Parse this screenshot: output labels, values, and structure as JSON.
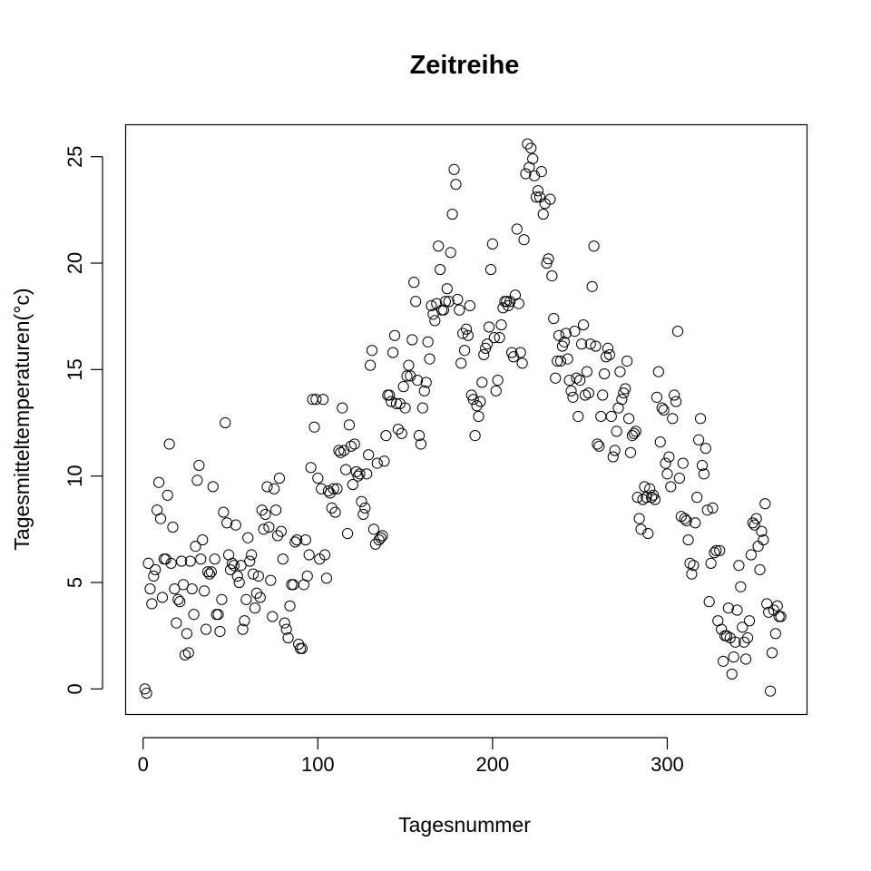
{
  "chart_data": {
    "type": "scatter",
    "title": "Zeitreihe",
    "xlabel": "Tagesnummer",
    "ylabel": "Tagesmitteltemperaturen(°c)",
    "xlim": [
      -10,
      380
    ],
    "ylim": [
      -1.2,
      26.5
    ],
    "xticks": [
      0,
      100,
      200,
      300
    ],
    "yticks": [
      0,
      5,
      10,
      15,
      20,
      25
    ],
    "grid": false,
    "marker": "open-circle",
    "point_color": "#000000",
    "points": [
      [
        1,
        0
      ],
      [
        2,
        -0.2
      ],
      [
        3,
        5.9
      ],
      [
        4,
        4.7
      ],
      [
        5,
        4.0
      ],
      [
        6,
        5.3
      ],
      [
        7,
        5.6
      ],
      [
        8,
        8.4
      ],
      [
        9,
        9.7
      ],
      [
        10,
        8.0
      ],
      [
        11,
        4.3
      ],
      [
        12,
        6.1
      ],
      [
        13,
        6.1
      ],
      [
        14,
        9.1
      ],
      [
        15,
        11.5
      ],
      [
        16,
        5.9
      ],
      [
        17,
        7.6
      ],
      [
        18,
        4.7
      ],
      [
        19,
        3.1
      ],
      [
        20,
        4.2
      ],
      [
        21,
        4.1
      ],
      [
        22,
        6.0
      ],
      [
        23,
        4.9
      ],
      [
        24,
        1.6
      ],
      [
        25,
        2.6
      ],
      [
        26,
        1.7
      ],
      [
        27,
        6.0
      ],
      [
        28,
        4.7
      ],
      [
        29,
        3.5
      ],
      [
        30,
        6.7
      ],
      [
        31,
        9.8
      ],
      [
        32,
        10.5
      ],
      [
        33,
        6.1
      ],
      [
        34,
        7.0
      ],
      [
        35,
        4.6
      ],
      [
        36,
        2.8
      ],
      [
        37,
        5.5
      ],
      [
        38,
        5.4
      ],
      [
        39,
        5.5
      ],
      [
        40,
        9.5
      ],
      [
        41,
        6.1
      ],
      [
        42,
        3.5
      ],
      [
        43,
        3.5
      ],
      [
        44,
        2.7
      ],
      [
        45,
        4.2
      ],
      [
        46,
        8.3
      ],
      [
        47,
        12.5
      ],
      [
        48,
        7.8
      ],
      [
        49,
        6.3
      ],
      [
        50,
        5.6
      ],
      [
        51,
        5.9
      ],
      [
        52,
        5.8
      ],
      [
        53,
        7.7
      ],
      [
        54,
        5.3
      ],
      [
        55,
        5.0
      ],
      [
        56,
        5.8
      ],
      [
        57,
        2.8
      ],
      [
        58,
        3.2
      ],
      [
        59,
        4.2
      ],
      [
        60,
        7.1
      ],
      [
        61,
        6.0
      ],
      [
        62,
        6.3
      ],
      [
        63,
        5.4
      ],
      [
        64,
        3.8
      ],
      [
        65,
        4.5
      ],
      [
        66,
        5.3
      ],
      [
        67,
        4.3
      ],
      [
        68,
        8.4
      ],
      [
        69,
        7.5
      ],
      [
        70,
        8.2
      ],
      [
        71,
        9.5
      ],
      [
        72,
        7.6
      ],
      [
        73,
        5.1
      ],
      [
        74,
        3.4
      ],
      [
        75,
        9.4
      ],
      [
        76,
        8.4
      ],
      [
        77,
        7.2
      ],
      [
        78,
        9.9
      ],
      [
        79,
        7.4
      ],
      [
        80,
        6.1
      ],
      [
        81,
        3.1
      ],
      [
        82,
        2.8
      ],
      [
        83,
        2.4
      ],
      [
        84,
        3.9
      ],
      [
        85,
        4.9
      ],
      [
        86,
        4.9
      ],
      [
        87,
        6.9
      ],
      [
        88,
        7.0
      ],
      [
        89,
        2.1
      ],
      [
        90,
        1.9
      ],
      [
        91,
        1.9
      ],
      [
        92,
        4.9
      ],
      [
        93,
        7.0
      ],
      [
        94,
        5.3
      ],
      [
        95,
        6.3
      ],
      [
        96,
        10.4
      ],
      [
        97,
        13.6
      ],
      [
        98,
        12.3
      ],
      [
        99,
        13.6
      ],
      [
        100,
        9.9
      ],
      [
        101,
        6.1
      ],
      [
        102,
        9.4
      ],
      [
        103,
        13.6
      ],
      [
        104,
        6.3
      ],
      [
        105,
        5.2
      ],
      [
        106,
        9.3
      ],
      [
        107,
        9.2
      ],
      [
        108,
        8.5
      ],
      [
        109,
        9.4
      ],
      [
        110,
        8.3
      ],
      [
        111,
        9.4
      ],
      [
        112,
        11.2
      ],
      [
        113,
        11.1
      ],
      [
        114,
        13.2
      ],
      [
        115,
        11.2
      ],
      [
        116,
        10.3
      ],
      [
        117,
        7.3
      ],
      [
        118,
        12.4
      ],
      [
        119,
        11.4
      ],
      [
        120,
        9.6
      ],
      [
        121,
        11.5
      ],
      [
        122,
        10.2
      ],
      [
        123,
        10.0
      ],
      [
        124,
        10.1
      ],
      [
        125,
        8.8
      ],
      [
        126,
        8.2
      ],
      [
        127,
        8.5
      ],
      [
        128,
        10.1
      ],
      [
        129,
        11.0
      ],
      [
        130,
        15.2
      ],
      [
        131,
        15.9
      ],
      [
        132,
        7.5
      ],
      [
        133,
        6.8
      ],
      [
        134,
        10.6
      ],
      [
        135,
        7.0
      ],
      [
        136,
        7.1
      ],
      [
        137,
        7.2
      ],
      [
        138,
        10.7
      ],
      [
        139,
        11.9
      ],
      [
        140,
        13.8
      ],
      [
        141,
        13.8
      ],
      [
        142,
        13.5
      ],
      [
        143,
        15.8
      ],
      [
        144,
        16.6
      ],
      [
        145,
        13.4
      ],
      [
        146,
        12.2
      ],
      [
        147,
        13.4
      ],
      [
        148,
        12.0
      ],
      [
        149,
        14.2
      ],
      [
        150,
        13.2
      ],
      [
        151,
        14.7
      ],
      [
        152,
        15.2
      ],
      [
        153,
        14.7
      ],
      [
        154,
        16.4
      ],
      [
        155,
        19.1
      ],
      [
        156,
        18.2
      ],
      [
        157,
        14.5
      ],
      [
        158,
        11.9
      ],
      [
        159,
        11.5
      ],
      [
        160,
        13.2
      ],
      [
        161,
        14.0
      ],
      [
        162,
        14.4
      ],
      [
        163,
        16.3
      ],
      [
        164,
        15.5
      ],
      [
        165,
        18.0
      ],
      [
        166,
        17.6
      ],
      [
        167,
        17.3
      ],
      [
        168,
        18.1
      ],
      [
        169,
        20.8
      ],
      [
        170,
        19.7
      ],
      [
        171,
        17.8
      ],
      [
        172,
        17.8
      ],
      [
        173,
        18.2
      ],
      [
        174,
        18.8
      ],
      [
        175,
        18.2
      ],
      [
        176,
        20.5
      ],
      [
        177,
        22.3
      ],
      [
        178,
        24.4
      ],
      [
        179,
        23.7
      ],
      [
        180,
        18.3
      ],
      [
        181,
        17.8
      ],
      [
        182,
        15.3
      ],
      [
        183,
        16.7
      ],
      [
        184,
        15.9
      ],
      [
        185,
        16.9
      ],
      [
        186,
        16.6
      ],
      [
        187,
        18.0
      ],
      [
        188,
        13.8
      ],
      [
        189,
        13.6
      ],
      [
        190,
        11.9
      ],
      [
        191,
        13.3
      ],
      [
        192,
        12.8
      ],
      [
        193,
        13.5
      ],
      [
        194,
        14.4
      ],
      [
        195,
        15.7
      ],
      [
        196,
        16.0
      ],
      [
        197,
        16.2
      ],
      [
        198,
        17.0
      ],
      [
        199,
        19.7
      ],
      [
        200,
        20.9
      ],
      [
        201,
        16.5
      ],
      [
        202,
        14.0
      ],
      [
        203,
        14.5
      ],
      [
        204,
        16.5
      ],
      [
        205,
        17.1
      ],
      [
        206,
        17.9
      ],
      [
        207,
        18.2
      ],
      [
        208,
        18.2
      ],
      [
        209,
        18.0
      ],
      [
        210,
        18.2
      ],
      [
        211,
        15.8
      ],
      [
        212,
        15.6
      ],
      [
        213,
        18.5
      ],
      [
        214,
        21.6
      ],
      [
        215,
        18.1
      ],
      [
        216,
        15.8
      ],
      [
        217,
        15.3
      ],
      [
        218,
        21.1
      ],
      [
        219,
        24.2
      ],
      [
        220,
        25.6
      ],
      [
        221,
        24.5
      ],
      [
        222,
        25.4
      ],
      [
        223,
        24.9
      ],
      [
        224,
        24.1
      ],
      [
        225,
        23.1
      ],
      [
        226,
        23.4
      ],
      [
        227,
        23.1
      ],
      [
        228,
        24.3
      ],
      [
        229,
        22.3
      ],
      [
        230,
        22.8
      ],
      [
        231,
        20.0
      ],
      [
        232,
        20.2
      ],
      [
        233,
        23.0
      ],
      [
        234,
        19.4
      ],
      [
        235,
        17.4
      ],
      [
        236,
        14.6
      ],
      [
        237,
        15.4
      ],
      [
        238,
        16.6
      ],
      [
        239,
        15.4
      ],
      [
        240,
        16.1
      ],
      [
        241,
        16.3
      ],
      [
        242,
        16.7
      ],
      [
        243,
        15.5
      ],
      [
        244,
        14.5
      ],
      [
        245,
        14.0
      ],
      [
        246,
        13.7
      ],
      [
        247,
        16.8
      ],
      [
        248,
        14.6
      ],
      [
        249,
        12.8
      ],
      [
        250,
        14.5
      ],
      [
        251,
        16.2
      ],
      [
        252,
        17.1
      ],
      [
        253,
        13.8
      ],
      [
        254,
        14.9
      ],
      [
        255,
        13.9
      ],
      [
        256,
        16.2
      ],
      [
        257,
        18.9
      ],
      [
        258,
        20.8
      ],
      [
        259,
        16.1
      ],
      [
        260,
        11.5
      ],
      [
        261,
        11.4
      ],
      [
        262,
        12.8
      ],
      [
        263,
        13.8
      ],
      [
        264,
        14.8
      ],
      [
        265,
        15.6
      ],
      [
        266,
        16.0
      ],
      [
        267,
        15.7
      ],
      [
        268,
        12.8
      ],
      [
        269,
        10.9
      ],
      [
        270,
        11.2
      ],
      [
        271,
        12.1
      ],
      [
        272,
        13.2
      ],
      [
        273,
        14.9
      ],
      [
        274,
        13.6
      ],
      [
        275,
        13.9
      ],
      [
        276,
        14.1
      ],
      [
        277,
        15.4
      ],
      [
        278,
        12.7
      ],
      [
        279,
        11.1
      ],
      [
        280,
        11.9
      ],
      [
        281,
        12.0
      ],
      [
        282,
        12.1
      ],
      [
        283,
        9.0
      ],
      [
        284,
        8.0
      ],
      [
        285,
        7.5
      ],
      [
        286,
        8.9
      ],
      [
        287,
        9.5
      ],
      [
        288,
        9.0
      ],
      [
        289,
        7.3
      ],
      [
        290,
        9.4
      ],
      [
        291,
        9.0
      ],
      [
        292,
        9.1
      ],
      [
        293,
        8.9
      ],
      [
        294,
        13.7
      ],
      [
        295,
        14.9
      ],
      [
        296,
        11.6
      ],
      [
        297,
        13.2
      ],
      [
        298,
        13.1
      ],
      [
        299,
        10.6
      ],
      [
        300,
        10.1
      ],
      [
        301,
        10.9
      ],
      [
        302,
        9.5
      ],
      [
        303,
        12.7
      ],
      [
        304,
        13.8
      ],
      [
        305,
        13.5
      ],
      [
        306,
        16.8
      ],
      [
        307,
        9.9
      ],
      [
        308,
        8.1
      ],
      [
        309,
        10.6
      ],
      [
        310,
        8.0
      ],
      [
        311,
        7.9
      ],
      [
        312,
        7.0
      ],
      [
        313,
        5.9
      ],
      [
        314,
        5.4
      ],
      [
        315,
        5.8
      ],
      [
        316,
        7.8
      ],
      [
        317,
        9.0
      ],
      [
        318,
        11.7
      ],
      [
        319,
        12.7
      ],
      [
        320,
        10.5
      ],
      [
        321,
        10.1
      ],
      [
        322,
        11.3
      ],
      [
        323,
        8.4
      ],
      [
        324,
        4.1
      ],
      [
        325,
        5.9
      ],
      [
        326,
        8.5
      ],
      [
        327,
        6.4
      ],
      [
        328,
        6.5
      ],
      [
        329,
        3.2
      ],
      [
        330,
        6.5
      ],
      [
        331,
        2.8
      ],
      [
        332,
        1.3
      ],
      [
        333,
        2.5
      ],
      [
        334,
        2.5
      ],
      [
        335,
        3.8
      ],
      [
        336,
        2.4
      ],
      [
        337,
        0.7
      ],
      [
        338,
        1.5
      ],
      [
        339,
        2.2
      ],
      [
        340,
        3.7
      ],
      [
        341,
        5.8
      ],
      [
        342,
        4.8
      ],
      [
        343,
        2.9
      ],
      [
        344,
        2.2
      ],
      [
        345,
        1.4
      ],
      [
        346,
        2.4
      ],
      [
        347,
        3.2
      ],
      [
        348,
        6.3
      ],
      [
        349,
        7.8
      ],
      [
        350,
        7.7
      ],
      [
        351,
        8.0
      ],
      [
        352,
        6.7
      ],
      [
        353,
        5.6
      ],
      [
        354,
        7.4
      ],
      [
        355,
        7.0
      ],
      [
        356,
        8.7
      ],
      [
        357,
        4.0
      ],
      [
        358,
        3.6
      ],
      [
        359,
        -0.1
      ],
      [
        360,
        1.7
      ],
      [
        361,
        3.7
      ],
      [
        362,
        2.6
      ],
      [
        363,
        3.9
      ],
      [
        364,
        3.4
      ],
      [
        365,
        3.4
      ]
    ]
  }
}
